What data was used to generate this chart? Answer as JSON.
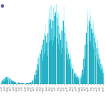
{
  "bar_color_fill": "#2ab8cc",
  "bar_color_edge": "#1a9aad",
  "bar_color_light": "#7de8f5",
  "background_color": "#ffffff",
  "n_bars": 80,
  "values": [
    0.04,
    0.05,
    0.07,
    0.09,
    0.1,
    0.09,
    0.08,
    0.07,
    0.05,
    0.04,
    0.03,
    0.02,
    0.02,
    0.02,
    0.01,
    0.01,
    0.01,
    0.01,
    0.01,
    0.01,
    0.01,
    0.01,
    0.02,
    0.03,
    0.05,
    0.08,
    0.13,
    0.2,
    0.28,
    0.36,
    0.42,
    0.48,
    0.55,
    0.62,
    0.68,
    0.58,
    0.72,
    0.85,
    0.9,
    0.78,
    0.88,
    0.95,
    1.0,
    0.92,
    0.82,
    0.7,
    0.62,
    0.75,
    0.88,
    0.72,
    0.6,
    0.5,
    0.42,
    0.35,
    0.28,
    0.22,
    0.18,
    0.15,
    0.12,
    0.1,
    0.08,
    0.09,
    0.12,
    0.2,
    0.35,
    0.55,
    0.72,
    0.82,
    0.88,
    0.85,
    0.78,
    0.72,
    0.65,
    0.58,
    0.5,
    0.42,
    0.35,
    0.28,
    0.22,
    0.16
  ],
  "spike_values": [
    0.04,
    0.05,
    0.07,
    0.09,
    0.1,
    0.09,
    0.08,
    0.07,
    0.05,
    0.04,
    0.03,
    0.02,
    0.02,
    0.02,
    0.01,
    0.01,
    0.01,
    0.01,
    0.01,
    0.01,
    0.01,
    0.01,
    0.02,
    0.03,
    0.05,
    0.08,
    0.14,
    0.22,
    0.32,
    0.4,
    0.46,
    0.52,
    0.6,
    0.68,
    0.75,
    0.62,
    0.8,
    0.92,
    0.98,
    0.85,
    0.95,
    1.02,
    1.08,
    0.98,
    0.88,
    0.76,
    0.68,
    0.82,
    0.96,
    0.78,
    0.65,
    0.54,
    0.45,
    0.38,
    0.3,
    0.24,
    0.19,
    0.16,
    0.13,
    0.11,
    0.09,
    0.1,
    0.14,
    0.22,
    0.4,
    0.62,
    0.8,
    0.9,
    0.96,
    0.92,
    0.84,
    0.78,
    0.7,
    0.63,
    0.54,
    0.46,
    0.38,
    0.3,
    0.24,
    0.18
  ],
  "dot_color": "#5b5ea6",
  "dot_size": 2.5
}
